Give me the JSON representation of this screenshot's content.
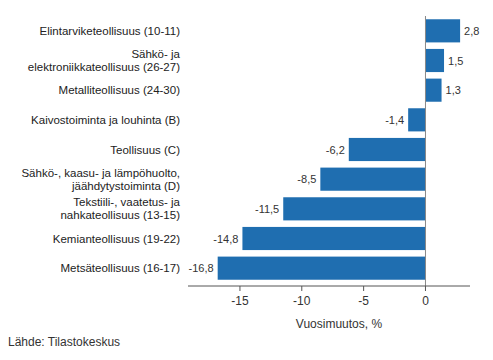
{
  "chart_data": {
    "type": "bar",
    "orientation": "horizontal",
    "categories": [
      "Elintarviketeollisuus (10-11)",
      "Sähkö- ja\nelektroniikkateollisuus (26-27)",
      "Metalliteollisuus (24-30)",
      "Kaivostoiminta ja louhinta (B)",
      "Teollisuus (C)",
      "Sähkö-, kaasu- ja lämpöhuolto,\njäähdytystoiminta (D)",
      "Tekstiili-, vaatetus- ja\nnahkateollisuus (13-15)",
      "Kemianteollisuus (19-22)",
      "Metsäteollisuus (16-17)"
    ],
    "values": [
      2.8,
      1.5,
      1.3,
      -1.4,
      -6.2,
      -8.5,
      -11.5,
      -14.8,
      -16.8
    ],
    "value_labels": [
      "2,8",
      "1,5",
      "1,3",
      "-1,4",
      "-6,2",
      "-8,5",
      "-11,5",
      "-14,8",
      "-16,8"
    ],
    "data_labels": true,
    "color": "#1f6eb0",
    "xlim": [
      -19.2,
      3.6
    ],
    "xticks": [
      -15,
      -10,
      -5,
      0
    ],
    "x_label": "Vuosimuutos, %",
    "annotations": [
      "Lähde: Tilastokeskus"
    ],
    "grid": false
  }
}
